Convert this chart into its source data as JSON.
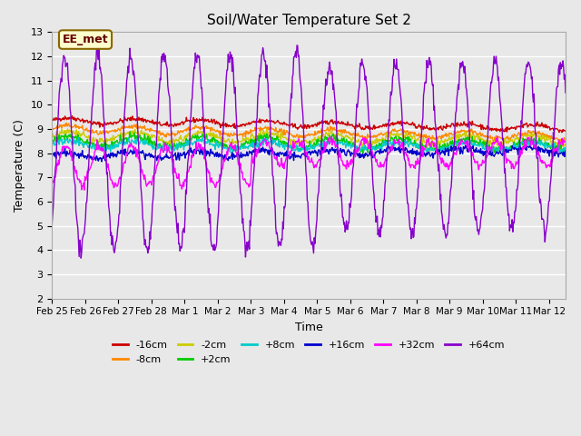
{
  "title": "Soil/Water Temperature Set 2",
  "xlabel": "Time",
  "ylabel": "Temperature (C)",
  "ylim": [
    2.0,
    13.0
  ],
  "yticks": [
    2.0,
    3.0,
    4.0,
    5.0,
    6.0,
    7.0,
    8.0,
    9.0,
    10.0,
    11.0,
    12.0,
    13.0
  ],
  "background_color": "#e8e8e8",
  "plot_bg_color": "#e8e8e8",
  "grid_color": "#ffffff",
  "annotation_text": "EE_met",
  "annotation_bg": "#ffffcc",
  "annotation_border": "#886600",
  "series": [
    {
      "label": "-16cm",
      "color": "#cc0000"
    },
    {
      "label": "-8cm",
      "color": "#ff8800"
    },
    {
      "label": "-2cm",
      "color": "#cccc00"
    },
    {
      "label": "+2cm",
      "color": "#00cc00"
    },
    {
      "label": "+8cm",
      "color": "#00cccc"
    },
    {
      "label": "+16cm",
      "color": "#0000cc"
    },
    {
      "label": "+32cm",
      "color": "#ff00ff"
    },
    {
      "label": "+64cm",
      "color": "#8800cc"
    }
  ],
  "xtick_labels": [
    "Feb 25",
    "Feb 26",
    "Feb 27",
    "Feb 28",
    "Mar 1",
    "Mar 2",
    "Mar 3",
    "Mar 4",
    "Mar 5",
    "Mar 6",
    "Mar 7",
    "Mar 8",
    "Mar 9",
    "Mar 10",
    "Mar 11",
    "Mar 12"
  ],
  "n_days": 15.5,
  "start_day": 0
}
